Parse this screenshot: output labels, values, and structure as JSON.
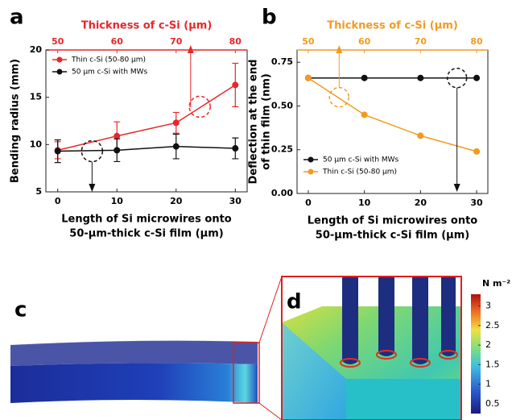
{
  "chart_data": [
    {
      "type": "line",
      "panel_label": "a",
      "xlabel": [
        "Length of Si microwires onto",
        "50-µm-thick c-Si film (µm)"
      ],
      "x2label": "Thickness of c-Si (µm)",
      "x2color": "#e8262b",
      "ylabel": [
        "Bending radius (mm)"
      ],
      "xlim": [
        -2,
        32
      ],
      "xticks": [
        0,
        10,
        20,
        30
      ],
      "x2lim": [
        48,
        82
      ],
      "x2ticks": [
        50,
        60,
        70,
        80
      ],
      "ylim": [
        5,
        20
      ],
      "yticks": [
        5,
        10,
        15,
        20
      ],
      "legend": "upper left",
      "series": [
        {
          "name": "Thin c-Si (50-80 µm)",
          "color": "#e8262b",
          "x": [
            0,
            10,
            20,
            30
          ],
          "values": [
            9.4,
            10.9,
            12.3,
            16.3
          ],
          "errors": [
            0.9,
            1.5,
            1.1,
            2.3
          ]
        },
        {
          "name": "50 µm c-Si with MWs",
          "color": "#111111",
          "x": [
            0,
            10,
            20,
            30
          ],
          "values": [
            9.3,
            9.4,
            9.8,
            9.6
          ],
          "errors": [
            1.2,
            1.2,
            1.3,
            1.1
          ]
        }
      ]
    },
    {
      "type": "line",
      "panel_label": "b",
      "xlabel": [
        "Length of Si microwires onto",
        "50-µm-thick c-Si film (µm)"
      ],
      "x2label": "Thickness of c-Si (µm)",
      "x2color": "#f39a1e",
      "ylabel": [
        "Deflection at the end",
        "of thin film (nm)"
      ],
      "xlim": [
        -2,
        32
      ],
      "xticks": [
        0,
        10,
        20,
        30
      ],
      "x2lim": [
        48,
        82
      ],
      "x2ticks": [
        50,
        60,
        70,
        80
      ],
      "ylim": [
        0,
        0.82
      ],
      "yticks": [
        {
          "value": 0,
          "label": "0.00"
        },
        0.25,
        {
          "value": 0.5,
          "label": "0.50"
        },
        0.75
      ],
      "legend": "lower left",
      "series": [
        {
          "name": "50 µm c-Si with MWs",
          "color": "#111111",
          "x": [
            0,
            10,
            20,
            30
          ],
          "values": [
            0.66,
            0.66,
            0.66,
            0.66
          ]
        },
        {
          "name": "Thin c-Si (50-80 µm)",
          "color": "#f39a1e",
          "x": [
            0,
            10,
            20,
            30
          ],
          "values": [
            0.66,
            0.45,
            0.33,
            0.24
          ]
        }
      ]
    }
  ],
  "panels": {
    "c": "c",
    "d": "d"
  },
  "colorbar": {
    "label": "N m⁻²",
    "lim": [
      0.25,
      3.3
    ],
    "ticks": [
      3,
      2.5,
      2,
      1.5,
      1,
      0.5
    ]
  }
}
